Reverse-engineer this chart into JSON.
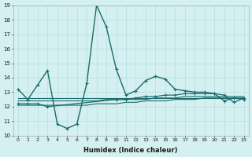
{
  "x": [
    0,
    1,
    2,
    3,
    4,
    5,
    6,
    7,
    8,
    9,
    10,
    11,
    12,
    13,
    14,
    15,
    16,
    17,
    18,
    19,
    20,
    21,
    22,
    23
  ],
  "series1": [
    13.2,
    12.5,
    13.5,
    14.5,
    10.8,
    10.5,
    10.8,
    13.6,
    19.0,
    17.5,
    14.6,
    12.8,
    13.1,
    13.8,
    14.1,
    13.9,
    13.2,
    13.1,
    13.0,
    13.0,
    12.9,
    12.4,
    12.6,
    12.5
  ],
  "series2": [
    12.2,
    12.2,
    12.2,
    12.0,
    null,
    null,
    null,
    null,
    null,
    null,
    12.5,
    12.5,
    12.6,
    12.7,
    12.7,
    12.8,
    12.8,
    12.9,
    12.9,
    12.9,
    12.9,
    12.8,
    12.3,
    12.6
  ],
  "series3": [
    12.4,
    12.4,
    12.4,
    12.4,
    12.4,
    12.4,
    12.4,
    12.4,
    12.4,
    12.5,
    12.5,
    12.5,
    12.5,
    12.5,
    12.6,
    12.6,
    12.6,
    12.7,
    12.7,
    12.7,
    12.7,
    12.7,
    12.7,
    12.7
  ],
  "series4": [
    12.1,
    12.1,
    12.1,
    12.1,
    12.1,
    12.1,
    12.1,
    12.1,
    12.2,
    12.2,
    12.2,
    12.3,
    12.3,
    12.4,
    12.4,
    12.4,
    12.5,
    12.5,
    12.5,
    12.6,
    12.6,
    12.6,
    12.6,
    12.6
  ],
  "series5": [
    12.6,
    12.6,
    12.6,
    12.6,
    12.6,
    12.6,
    12.6,
    12.6,
    12.6,
    12.6,
    12.6,
    12.6,
    12.6,
    12.6,
    12.6,
    12.6,
    12.6,
    12.6,
    12.6,
    12.6,
    12.6,
    12.6,
    12.6,
    12.6
  ],
  "line_color": "#1a6b6b",
  "bg_color": "#d4f0f0",
  "grid_color": "#b8dede",
  "xlabel": "Humidex (Indice chaleur)",
  "ylim": [
    10,
    19
  ],
  "xlim": [
    -0.5,
    23.5
  ]
}
